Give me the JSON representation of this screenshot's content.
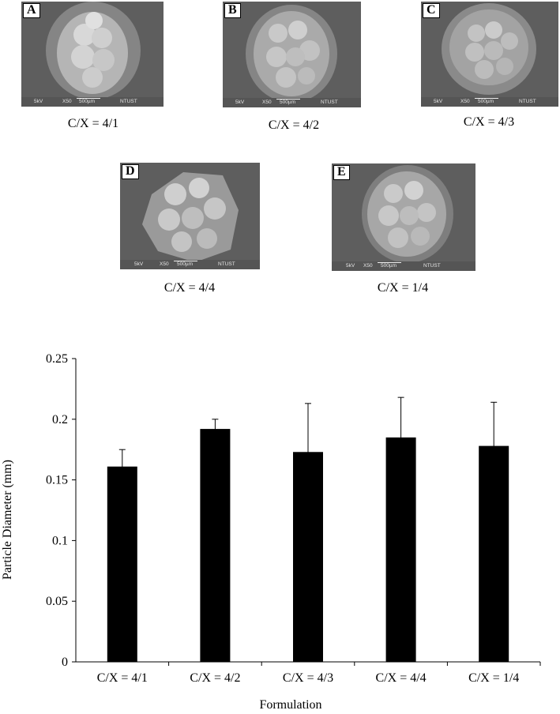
{
  "panels": [
    {
      "letter": "A",
      "caption": "C/X = 4/1",
      "kv": "5kV",
      "mag": "X50",
      "scale": "500µm",
      "lab": "NTUST"
    },
    {
      "letter": "B",
      "caption": "C/X = 4/2",
      "kv": "5kV",
      "mag": "X50",
      "scale": "500µm",
      "lab": "NTUST"
    },
    {
      "letter": "C",
      "caption": "C/X = 4/3",
      "kv": "5kV",
      "mag": "X50",
      "scale": "500µm",
      "lab": "NTUST"
    },
    {
      "letter": "D",
      "caption": "C/X = 4/4",
      "kv": "5kV",
      "mag": "X50",
      "scale": "500µm",
      "lab": "NTUST"
    },
    {
      "letter": "E",
      "caption": "C/X = 1/4",
      "kv": "5kV",
      "mag": "X50",
      "scale": "500µm",
      "lab": "NTUST"
    }
  ],
  "chart_data": {
    "type": "bar",
    "categories": [
      "C/X = 4/1",
      "C/X = 4/2",
      "C/X = 4/3",
      "C/X = 4/4",
      "C/X = 1/4"
    ],
    "values": [
      0.161,
      0.192,
      0.173,
      0.185,
      0.178
    ],
    "error": [
      0.014,
      0.008,
      0.04,
      0.033,
      0.036
    ],
    "xlabel": "Formulation",
    "ylabel": "Particle Diameter (mm)",
    "ylim": [
      0,
      0.25
    ],
    "yticks": [
      0,
      0.05,
      0.1,
      0.15,
      0.2,
      0.25
    ],
    "ytick_labels": [
      "0",
      "0.05",
      "0.1",
      "0.15",
      "0.2",
      "0.25"
    ],
    "bar_color": "#000000",
    "grid": false,
    "legend": "none"
  }
}
